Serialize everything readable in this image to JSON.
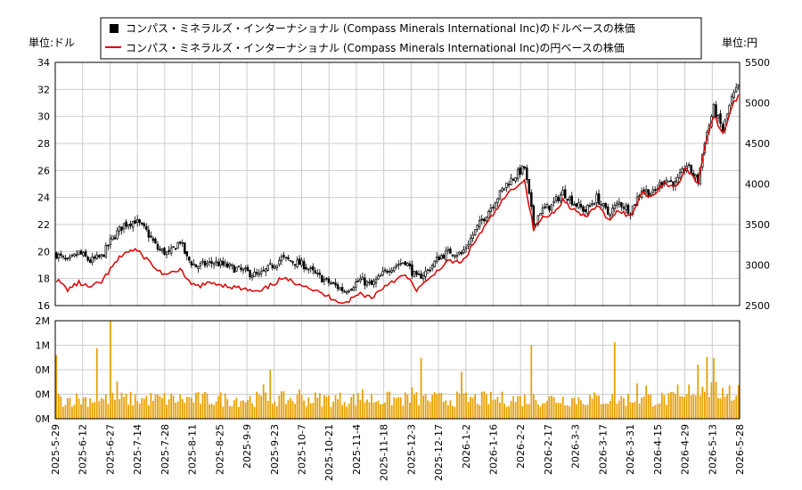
{
  "chart_data": {
    "type": "candlestick",
    "legend": [
      {
        "label": "コンパス・ミネラルズ・インターナショナル (Compass Minerals International Inc)のドルベースの株価",
        "color": "#000000"
      },
      {
        "label": "コンパス・ミネラルズ・インターナショナル (Compass Minerals International Inc)の円ベースの株価",
        "color": "#dd0000"
      }
    ],
    "left_unit": "単位:ドル",
    "right_unit": "単位:円",
    "price_ylim": [
      16,
      34
    ],
    "price_yticks": [
      "16",
      "18",
      "20",
      "22",
      "24",
      "26",
      "28",
      "30",
      "32",
      "34"
    ],
    "yen_ylim": [
      2500,
      5500
    ],
    "yen_yticks": [
      "2500",
      "3000",
      "3500",
      "4000",
      "4500",
      "5000",
      "5500"
    ],
    "volume_yticks": [
      "0M",
      "0M",
      "0M",
      "1M",
      "2M"
    ],
    "volume_color": "#e8a000",
    "x_ticks": [
      "2025-5-29",
      "2025-6-12",
      "2025-6-27",
      "2025-7-14",
      "2025-7-28",
      "2025-8-11",
      "2025-8-25",
      "2025-9-9",
      "2025-9-23",
      "2025-10-7",
      "2025-10-21",
      "2025-11-4",
      "2025-11-18",
      "2025-12-3",
      "2025-12-17",
      "2026-1-2",
      "2026-1-16",
      "2026-2-2",
      "2026-2-17",
      "2026-3-3",
      "2026-3-17",
      "2026-3-31",
      "2026-4-15",
      "2026-4-29",
      "2026-5-13",
      "2026-5-28"
    ],
    "price_keypoints": [
      [
        0,
        19.8
      ],
      [
        5,
        19.2
      ],
      [
        10,
        19.9
      ],
      [
        15,
        19.3
      ],
      [
        20,
        19.6
      ],
      [
        25,
        21.0
      ],
      [
        30,
        22.0
      ],
      [
        35,
        22.3
      ],
      [
        40,
        21.5
      ],
      [
        45,
        20.2
      ],
      [
        50,
        19.8
      ],
      [
        55,
        20.8
      ],
      [
        58,
        19.5
      ],
      [
        62,
        18.9
      ],
      [
        70,
        19.2
      ],
      [
        80,
        18.7
      ],
      [
        90,
        18.2
      ],
      [
        100,
        19.5
      ],
      [
        110,
        19.0
      ],
      [
        115,
        18.3
      ],
      [
        120,
        17.8
      ],
      [
        128,
        17.1
      ],
      [
        135,
        17.9
      ],
      [
        140,
        17.5
      ],
      [
        148,
        18.8
      ],
      [
        155,
        19.3
      ],
      [
        160,
        18.0
      ],
      [
        165,
        18.6
      ],
      [
        170,
        19.6
      ],
      [
        175,
        20.0
      ],
      [
        180,
        19.8
      ],
      [
        187,
        21.8
      ],
      [
        195,
        23.8
      ],
      [
        200,
        25.0
      ],
      [
        205,
        25.8
      ],
      [
        208,
        26.2
      ],
      [
        212,
        22.0
      ],
      [
        215,
        23.0
      ],
      [
        220,
        23.4
      ],
      [
        225,
        24.4
      ],
      [
        230,
        23.6
      ],
      [
        235,
        23.0
      ],
      [
        240,
        24.0
      ],
      [
        245,
        22.8
      ],
      [
        250,
        23.6
      ],
      [
        255,
        23.0
      ],
      [
        260,
        24.6
      ],
      [
        265,
        24.3
      ],
      [
        270,
        25.4
      ],
      [
        275,
        25.0
      ],
      [
        280,
        26.4
      ],
      [
        285,
        25.2
      ],
      [
        288,
        28.2
      ],
      [
        292,
        30.6
      ],
      [
        296,
        29.0
      ],
      [
        300,
        31.3
      ],
      [
        303,
        32.2
      ]
    ],
    "yen_keypoints": [
      [
        0,
        2820
      ],
      [
        5,
        2700
      ],
      [
        10,
        2780
      ],
      [
        15,
        2720
      ],
      [
        20,
        2790
      ],
      [
        25,
        2980
      ],
      [
        30,
        3150
      ],
      [
        35,
        3190
      ],
      [
        40,
        3080
      ],
      [
        45,
        2930
      ],
      [
        50,
        2870
      ],
      [
        55,
        2960
      ],
      [
        58,
        2800
      ],
      [
        62,
        2740
      ],
      [
        70,
        2780
      ],
      [
        80,
        2720
      ],
      [
        90,
        2660
      ],
      [
        100,
        2830
      ],
      [
        110,
        2760
      ],
      [
        115,
        2680
      ],
      [
        120,
        2620
      ],
      [
        128,
        2530
      ],
      [
        135,
        2650
      ],
      [
        140,
        2600
      ],
      [
        148,
        2790
      ],
      [
        155,
        2870
      ],
      [
        160,
        2700
      ],
      [
        165,
        2800
      ],
      [
        170,
        2960
      ],
      [
        175,
        3050
      ],
      [
        180,
        3020
      ],
      [
        187,
        3340
      ],
      [
        195,
        3660
      ],
      [
        200,
        3860
      ],
      [
        205,
        4000
      ],
      [
        208,
        4040
      ],
      [
        212,
        3440
      ],
      [
        215,
        3560
      ],
      [
        220,
        3630
      ],
      [
        225,
        3800
      ],
      [
        230,
        3680
      ],
      [
        235,
        3580
      ],
      [
        240,
        3740
      ],
      [
        245,
        3560
      ],
      [
        250,
        3680
      ],
      [
        255,
        3590
      ],
      [
        260,
        3900
      ],
      [
        265,
        3850
      ],
      [
        270,
        4020
      ],
      [
        275,
        3950
      ],
      [
        280,
        4200
      ],
      [
        285,
        4000
      ],
      [
        288,
        4480
      ],
      [
        292,
        4850
      ],
      [
        296,
        4600
      ],
      [
        300,
        4950
      ],
      [
        303,
        5100
      ]
    ]
  }
}
